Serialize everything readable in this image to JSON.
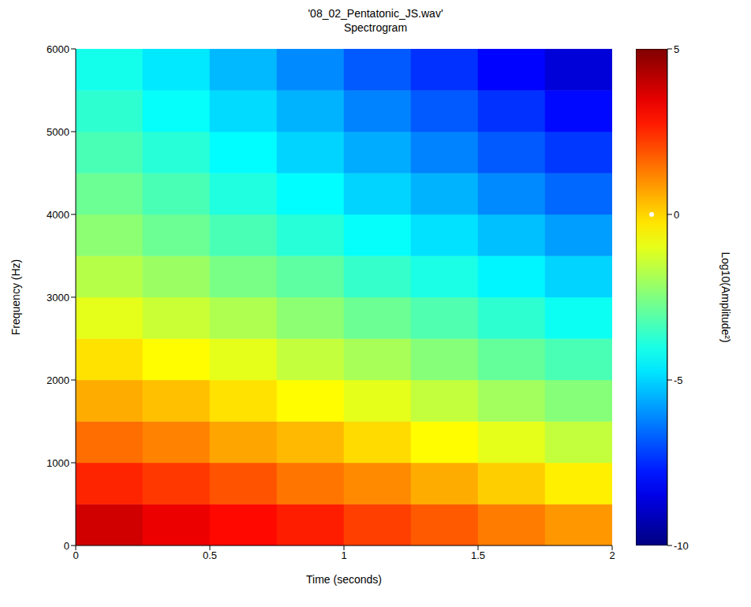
{
  "chart_data": {
    "type": "heatmap",
    "title": "'08_02_Pentatonic_JS.wav'",
    "subtitle": "Spectrogram",
    "xlabel": "Time (seconds)",
    "ylabel": "Frequency (Hz)",
    "x": [
      0,
      0.25,
      0.5,
      0.75,
      1,
      1.25,
      1.5,
      1.75,
      2
    ],
    "y": [
      0,
      500,
      1000,
      1500,
      2000,
      2500,
      3000,
      3500,
      4000,
      4500,
      5000,
      5500,
      6000
    ],
    "xlim": [
      0,
      2
    ],
    "xticks": [
      0,
      0.5,
      1,
      1.5,
      2
    ],
    "ylim": [
      0,
      6000
    ],
    "yticks": [
      0,
      1000,
      2000,
      3000,
      4000,
      5000,
      6000
    ],
    "cells": [
      [
        3.8,
        3.4,
        3.0,
        2.7,
        2.2,
        1.8,
        1.3,
        0.9
      ],
      [
        2.6,
        2.3,
        1.9,
        1.4,
        1.1,
        0.6,
        0.1,
        -0.4
      ],
      [
        1.5,
        1.2,
        0.7,
        0.4,
        -0.1,
        -0.6,
        -1.0,
        -1.5
      ],
      [
        0.6,
        0.3,
        -0.2,
        -0.6,
        -1.0,
        -1.5,
        -2.0,
        -2.4
      ],
      [
        -0.2,
        -0.6,
        -1.0,
        -1.5,
        -1.9,
        -2.4,
        -2.9,
        -3.3
      ],
      [
        -1.0,
        -1.4,
        -1.8,
        -2.3,
        -2.8,
        -3.2,
        -3.7,
        -4.2
      ],
      [
        -1.7,
        -2.1,
        -2.6,
        -3.0,
        -3.6,
        -4.0,
        -4.5,
        -5.0
      ],
      [
        -2.3,
        -2.8,
        -3.3,
        -3.8,
        -4.3,
        -4.8,
        -5.3,
        -5.8
      ],
      [
        -2.8,
        -3.3,
        -3.9,
        -4.4,
        -5.0,
        -5.5,
        -6.1,
        -6.6
      ],
      [
        -3.3,
        -3.8,
        -4.4,
        -5.0,
        -5.6,
        -6.2,
        -6.8,
        -7.3
      ],
      [
        -3.7,
        -4.3,
        -4.9,
        -5.5,
        -6.2,
        -6.8,
        -7.4,
        -8.0
      ],
      [
        -4.1,
        -4.7,
        -5.4,
        -6.1,
        -6.8,
        -7.4,
        -8.1,
        -8.7
      ]
    ],
    "colorbar": {
      "label": "Log10(Amplitude²)",
      "range": [
        -10,
        5
      ],
      "ticks": [
        -10,
        -5,
        0,
        5
      ]
    }
  }
}
